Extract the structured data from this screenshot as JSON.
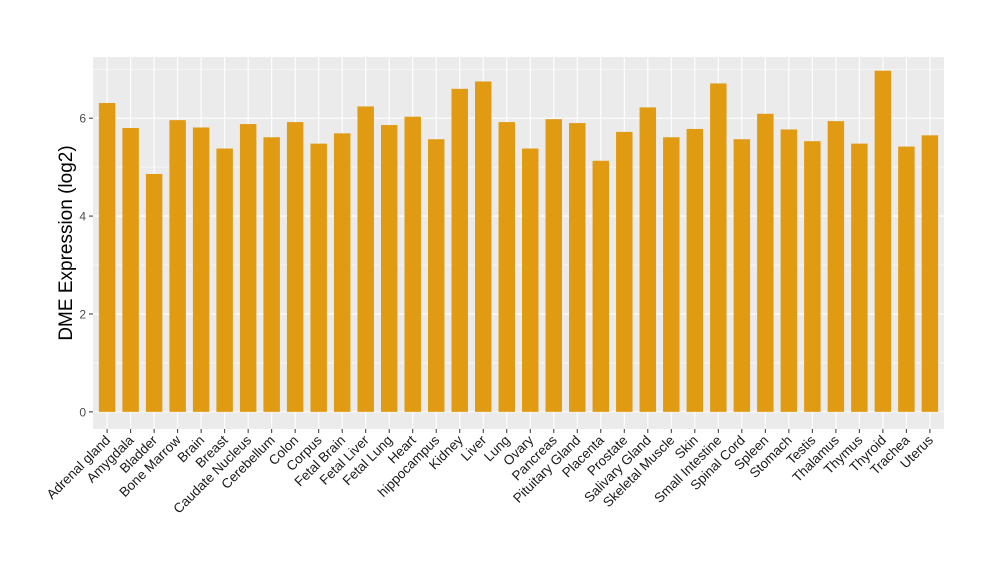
{
  "chart_data": {
    "type": "bar",
    "ylabel": "DME Expression (log2)",
    "xlabel": "",
    "ylim": [
      -0.35,
      7.25
    ],
    "yticks": [
      0,
      2,
      4,
      6
    ],
    "grid": true,
    "colors": {
      "bar": "#E09B12",
      "panel": "#EBEBEB",
      "grid_major": "#FFFFFF",
      "tick": "#333333"
    },
    "categories": [
      "Adrenal gland",
      "Amygdala",
      "Bladder",
      "Bone Marrow",
      "Brain",
      "Breast",
      "Caudate Nucleus",
      "Cerebellum",
      "Colon",
      "Corpus",
      "Fetal Brain",
      "Fetal Liver",
      "Fetal Lung",
      "Heart",
      "hippocampus",
      "Kidney",
      "Liver",
      "Lung",
      "Ovary",
      "Pancreas",
      "Pituitary Gland",
      "Placenta",
      "Prostate",
      "Salivary Gland",
      "Skeletal Muscle",
      "Skin",
      "Small Intestine",
      "Spinal Cord",
      "Spleen",
      "Stomach",
      "Testis",
      "Thalamus",
      "Thymus",
      "Thyroid",
      "Trachea",
      "Uterus"
    ],
    "values": [
      6.31,
      5.8,
      4.86,
      5.96,
      5.81,
      5.38,
      5.88,
      5.61,
      5.92,
      5.48,
      5.69,
      6.24,
      5.86,
      6.03,
      5.57,
      6.6,
      6.75,
      5.92,
      5.38,
      5.98,
      5.9,
      5.13,
      5.72,
      6.22,
      5.61,
      5.78,
      6.71,
      5.57,
      6.09,
      5.77,
      5.53,
      5.94,
      5.48,
      6.97,
      5.42,
      5.65
    ]
  }
}
